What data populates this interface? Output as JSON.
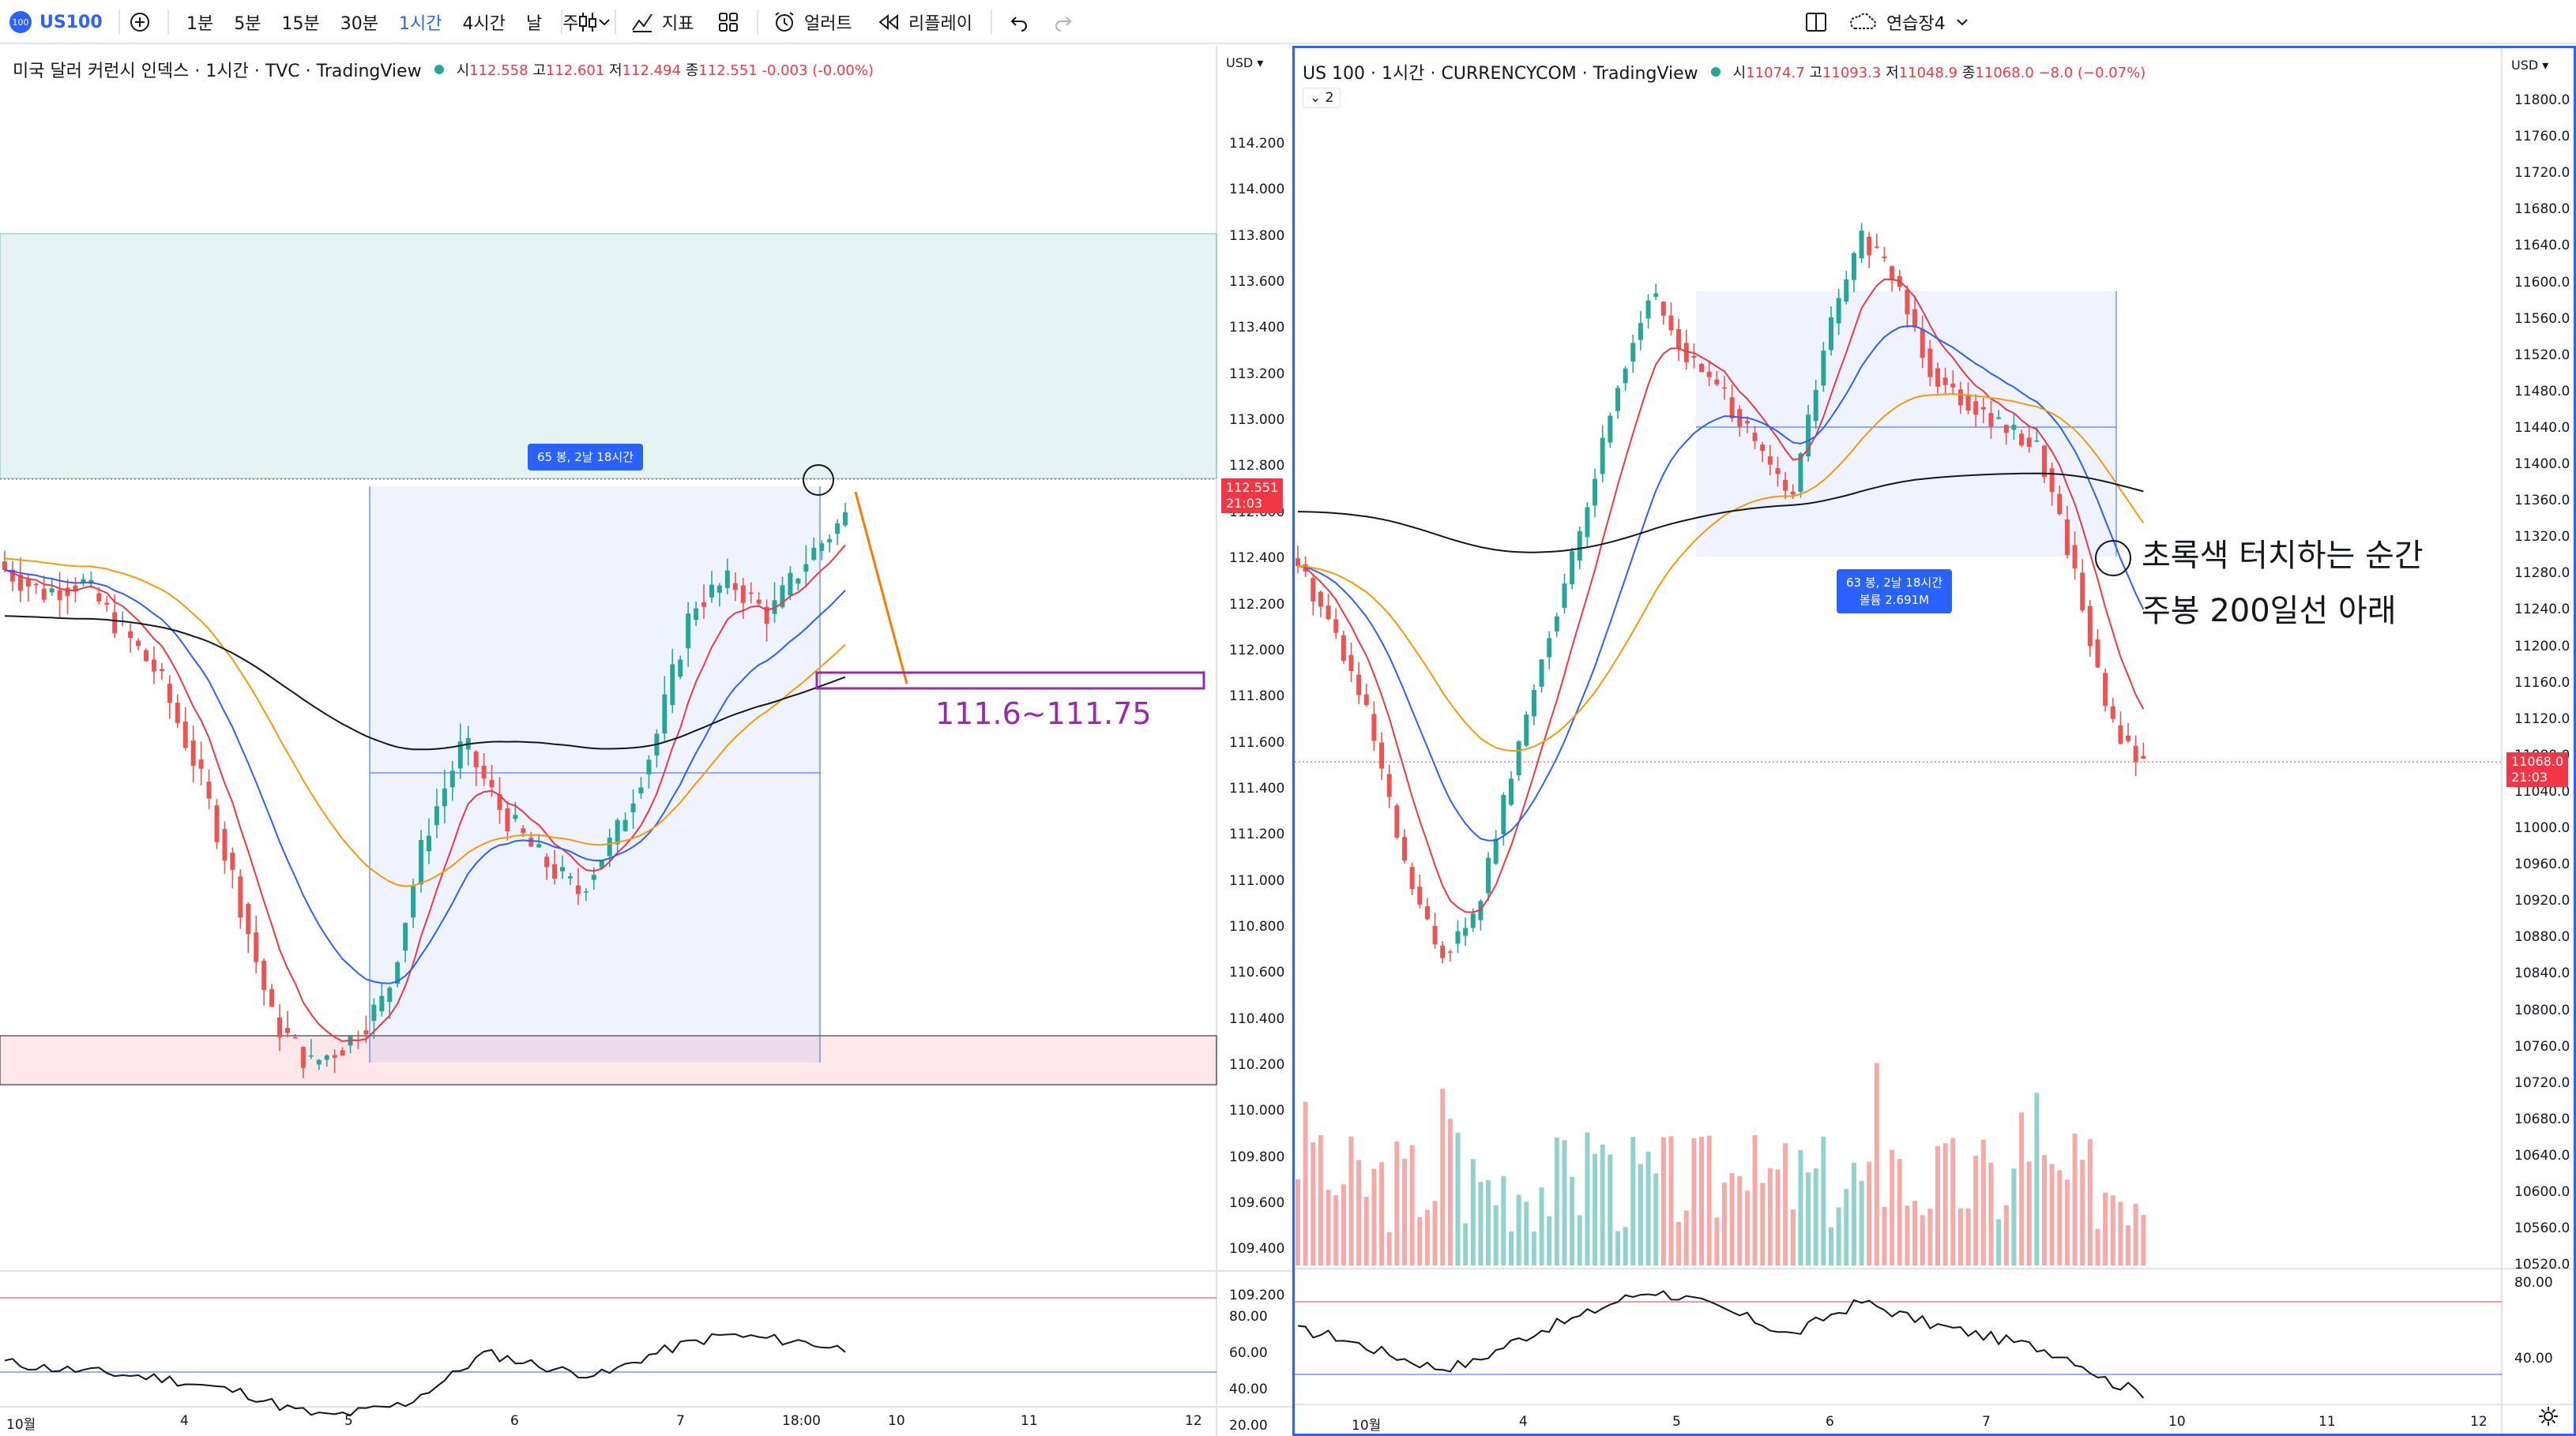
{
  "topbar": {
    "symbol": "US100",
    "logo_text": "100",
    "timeframes": [
      "1분",
      "5분",
      "15분",
      "30분",
      "1시간",
      "4시간",
      "날",
      "주"
    ],
    "active_timeframe": "1시간",
    "indicators_label": "지표",
    "alert_label": "얼러트",
    "replay_label": "리플레이",
    "layout_name": "연습장4"
  },
  "left_chart": {
    "title": "미국 달러 커런시 인덱스 · 1시간 · TVC · TradingView",
    "open_label": "시",
    "open": "112.558",
    "high_label": "고",
    "high": "112.601",
    "low_label": "저",
    "low": "112.494",
    "close_label": "종",
    "close": "112.551",
    "change": "-0.003 (-0.00%)",
    "currency": "USD",
    "price_ticks": [
      "114.200",
      "114.000",
      "113.800",
      "113.600",
      "113.400",
      "113.200",
      "113.000",
      "112.800",
      "112.600",
      "112.400",
      "112.200",
      "112.000",
      "111.800",
      "111.600",
      "111.400",
      "111.200",
      "111.000",
      "110.800",
      "110.600",
      "110.400",
      "110.200",
      "110.000",
      "109.800",
      "109.600",
      "109.400",
      "109.200"
    ],
    "last_price": "112.551",
    "countdown": "21:03",
    "range_box": "65 봉, 2날 18시간",
    "zone_label": "111.6~111.75",
    "rsi_ticks": [
      "80.00",
      "60.00",
      "40.00",
      "20.00"
    ],
    "time_labels": [
      "10월",
      "4",
      "5",
      "6",
      "7",
      "18:00",
      "10",
      "11",
      "12"
    ]
  },
  "right_chart": {
    "title": "US 100 · 1시간 · CURRENCYCOM · TradingView",
    "open_label": "시",
    "open": "11074.7",
    "high_label": "고",
    "high": "11093.3",
    "low_label": "저",
    "low": "11048.9",
    "close_label": "종",
    "close": "11068.0",
    "change": "−8.0 (−0.07%)",
    "collapse_count": "2",
    "currency": "USD",
    "price_ticks": [
      "11800.0",
      "11760.0",
      "11720.0",
      "11680.0",
      "11640.0",
      "11600.0",
      "11560.0",
      "11520.0",
      "11480.0",
      "11440.0",
      "11400.0",
      "11360.0",
      "11320.0",
      "11280.0",
      "11240.0",
      "11200.0",
      "11160.0",
      "11120.0",
      "11080.0",
      "11040.0",
      "11000.0",
      "10960.0",
      "10920.0",
      "10880.0",
      "10840.0",
      "10800.0",
      "10760.0",
      "10720.0",
      "10680.0",
      "10640.0",
      "10600.0",
      "10560.0",
      "10520.0"
    ],
    "last_price": "11068.0",
    "countdown": "21:03",
    "range_box_line1": "63 봉, 2날 18시간",
    "range_box_line2": "볼륨 2.691M",
    "annotation_line1": "초록색 터치하는 순간",
    "annotation_line2": "주봉 200일선 아래",
    "rsi_ticks": [
      "80.00",
      "40.00"
    ],
    "time_labels": [
      "10월",
      "4",
      "5",
      "6",
      "7",
      "10",
      "11",
      "12"
    ]
  },
  "colors": {
    "up": "#26a69a",
    "down": "#ef5350",
    "accent": "#2962ff",
    "ma_red": "#f23645",
    "ma_blue": "#2962ff",
    "ma_orange": "#ff9800",
    "ma_black": "#131722",
    "zone_purple": "#9c27b0"
  }
}
